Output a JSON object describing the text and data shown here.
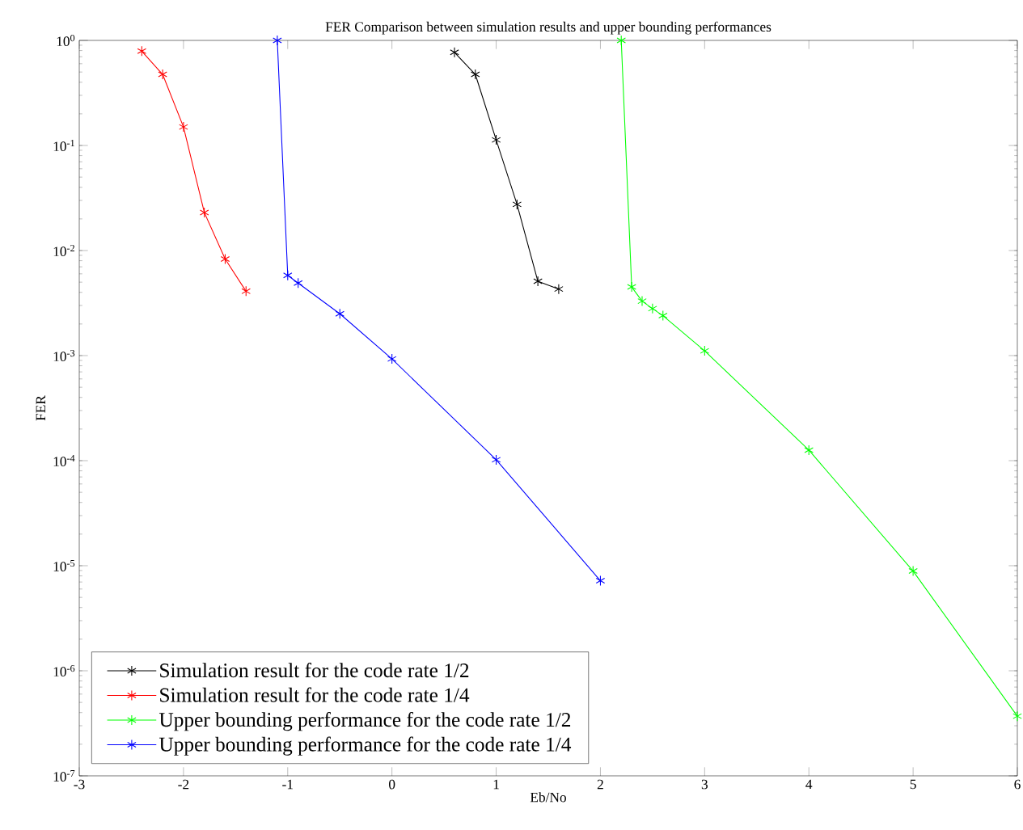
{
  "chart_data": {
    "type": "line",
    "title": "FER Comparison between simulation results and upper bounding performances",
    "xlabel": "Eb/No",
    "ylabel": "FER",
    "log": "y",
    "marker": "cross",
    "line_style": "solid",
    "legend": "bottom left",
    "xlim": [
      -3,
      6
    ],
    "ylim": [
      1e-07,
      1
    ],
    "xticks": [
      -3,
      -2,
      -1,
      0,
      1,
      2,
      3,
      4,
      5,
      6
    ],
    "yticks": [
      {
        "value": 1e-07,
        "label": "10$^{-7}$"
      },
      {
        "value": 1e-06,
        "label": "10$^{-6}$"
      },
      {
        "value": 1e-05,
        "label": "10$^{-5}$"
      },
      {
        "value": 0.0001,
        "label": "10$^{-4}$"
      },
      {
        "value": 0.001,
        "label": "10$^{-3}$"
      },
      {
        "value": 0.01,
        "label": "10$^{-2}$"
      },
      {
        "value": 0.1,
        "label": "10$^{-1}$"
      },
      {
        "value": 1,
        "label": "10$^{0}$"
      }
    ],
    "series": [
      {
        "name": "Simulation result for the code rate 1/2",
        "color": "#000000",
        "x": [
          0.6,
          0.8,
          1.0,
          1.2,
          1.4,
          1.6
        ],
        "values": [
          0.77,
          0.475,
          0.113,
          0.0275,
          0.0051,
          0.0043
        ]
      },
      {
        "name": "Simulation result for the code rate 1/4",
        "color": "#ff0000",
        "x": [
          -2.4,
          -2.2,
          -2.0,
          -1.8,
          -1.6,
          -1.4
        ],
        "values": [
          0.79,
          0.475,
          0.15,
          0.023,
          0.0083,
          0.0041
        ]
      },
      {
        "name": "Upper bounding performance for the code rate 1/2",
        "color": "#00ff00",
        "x": [
          2.2,
          2.3,
          2.4,
          2.5,
          2.6,
          3,
          4,
          5,
          6
        ],
        "values": [
          1.0,
          0.0045,
          0.0033,
          0.0028,
          0.0024,
          0.00111,
          0.000126,
          8.9e-06,
          3.7e-07
        ]
      },
      {
        "name": "Upper bounding performance for the code rate 1/4",
        "color": "#0000ff",
        "x": [
          -1.1,
          -1.0,
          -0.9,
          -0.5,
          0,
          1,
          2
        ],
        "values": [
          1.0,
          0.0058,
          0.0049,
          0.0025,
          0.00093,
          0.000102,
          7.2e-06
        ]
      }
    ]
  }
}
